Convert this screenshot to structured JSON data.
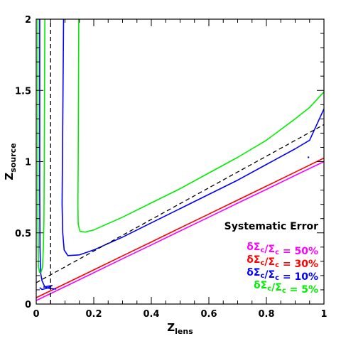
{
  "chart_data": {
    "type": "line",
    "xlabel": {
      "main": "Z",
      "sub": "lens"
    },
    "ylabel": {
      "main": "Z",
      "sub": "source"
    },
    "xlim": [
      0,
      1
    ],
    "ylim": [
      0,
      2
    ],
    "x_ticks": [
      "0",
      "0.2",
      "0.4",
      "0.6",
      "0.8",
      "1"
    ],
    "x_tick_values": [
      0,
      0.2,
      0.4,
      0.6,
      0.8,
      1
    ],
    "y_ticks": [
      "0",
      "0.5",
      "1",
      "1.5",
      "2"
    ],
    "y_tick_values": [
      0,
      0.5,
      1,
      1.5,
      2
    ],
    "grid": false,
    "legend_title": "Systematic Error",
    "legend_placement": "bottom-right",
    "series": [
      {
        "name": "δΣc/Σc = 50%",
        "label_html": "δΣ<sub>c</sub>/Σ<sub>c</sub> = 50%",
        "color": "#ff00ff",
        "segments": [
          [
            [
              0,
              0.025
            ],
            [
              0.1,
              0.122
            ],
            [
              0.2,
              0.22
            ],
            [
              0.3,
              0.318
            ],
            [
              0.4,
              0.415
            ],
            [
              0.5,
              0.513
            ],
            [
              0.6,
              0.61
            ],
            [
              0.7,
              0.708
            ],
            [
              0.8,
              0.805
            ],
            [
              0.9,
              0.903
            ],
            [
              1.0,
              1.0
            ]
          ]
        ]
      },
      {
        "name": "δΣc/Σc = 30%",
        "label_html": "δΣ<sub>c</sub>/Σ<sub>c</sub> = 30%",
        "color": "#ff0000",
        "segments": [
          [
            [
              0,
              0.045
            ],
            [
              0.1,
              0.142
            ],
            [
              0.2,
              0.24
            ],
            [
              0.3,
              0.338
            ],
            [
              0.4,
              0.436
            ],
            [
              0.5,
              0.534
            ],
            [
              0.6,
              0.632
            ],
            [
              0.7,
              0.73
            ],
            [
              0.8,
              0.828
            ],
            [
              0.9,
              0.926
            ],
            [
              1.0,
              1.025
            ]
          ]
        ]
      },
      {
        "name": "δΣc/Σc = 10%",
        "label_html": "δΣ<sub>c</sub>/Σ<sub>c</sub> = 10%",
        "color": "#0000ff",
        "segments": [
          [
            [
              0.012,
              2.0
            ],
            [
              0.012,
              1.5
            ],
            [
              0.012,
              0.8
            ],
            [
              0.013,
              0.4
            ],
            [
              0.015,
              0.22
            ],
            [
              0.02,
              0.165
            ],
            [
              0.03,
              0.12
            ],
            [
              0.045,
              0.11
            ],
            [
              0.07,
              0.105
            ]
          ],
          [
            [
              0.012,
              0.115
            ],
            [
              0.02,
              0.102
            ],
            [
              0.04,
              0.112
            ],
            [
              0.055,
              0.13
            ],
            [
              0.04,
              0.125
            ],
            [
              0.025,
              0.118
            ]
          ],
          [
            [
              0.095,
              2.0
            ],
            [
              0.093,
              1.5
            ],
            [
              0.091,
              1.0
            ],
            [
              0.09,
              0.7
            ],
            [
              0.092,
              0.5
            ],
            [
              0.097,
              0.38
            ],
            [
              0.11,
              0.34
            ],
            [
              0.15,
              0.345
            ],
            [
              0.2,
              0.38
            ],
            [
              0.3,
              0.47
            ],
            [
              0.4,
              0.57
            ],
            [
              0.5,
              0.67
            ],
            [
              0.6,
              0.77
            ],
            [
              0.7,
              0.87
            ],
            [
              0.8,
              0.98
            ],
            [
              0.9,
              1.09
            ],
            [
              0.95,
              1.15
            ],
            [
              1.0,
              1.37
            ]
          ]
        ]
      },
      {
        "name": "δΣc/Σc = 5%",
        "label_html": "δΣ<sub>c</sub>/Σ<sub>c</sub> = 5%",
        "color": "#00ee00",
        "segments": [
          [
            [
              0.006,
              2.0
            ],
            [
              0.006,
              1.5
            ],
            [
              0.006,
              1.0
            ],
            [
              0.006,
              0.6
            ],
            [
              0.007,
              0.4
            ],
            [
              0.008,
              0.26
            ],
            [
              0.012,
              0.22
            ]
          ],
          [
            [
              0.03,
              2.0
            ],
            [
              0.029,
              1.5
            ],
            [
              0.028,
              1.0
            ],
            [
              0.027,
              0.6
            ],
            [
              0.025,
              0.4
            ],
            [
              0.022,
              0.26
            ],
            [
              0.016,
              0.22
            ]
          ],
          [
            [
              0.148,
              2.0
            ],
            [
              0.147,
              1.5
            ],
            [
              0.146,
              1.0
            ],
            [
              0.145,
              0.7
            ],
            [
              0.146,
              0.56
            ],
            [
              0.152,
              0.51
            ],
            [
              0.17,
              0.505
            ],
            [
              0.2,
              0.52
            ],
            [
              0.3,
              0.61
            ],
            [
              0.4,
              0.71
            ],
            [
              0.5,
              0.81
            ],
            [
              0.6,
              0.92
            ],
            [
              0.7,
              1.03
            ],
            [
              0.8,
              1.15
            ],
            [
              0.9,
              1.3
            ],
            [
              0.95,
              1.38
            ],
            [
              1.0,
              1.49
            ]
          ]
        ]
      }
    ],
    "reference_lines": [
      {
        "style": "dashed",
        "color": "#000000",
        "points": [
          [
            0.05,
            0
          ],
          [
            0.05,
            2
          ]
        ]
      },
      {
        "style": "dashed",
        "color": "#000000",
        "points": [
          [
            0,
            0.15
          ],
          [
            1,
            1.26
          ]
        ]
      }
    ],
    "markers": [
      {
        "color": "#0000ff",
        "point": [
          0.946,
          1.03
        ]
      }
    ]
  }
}
